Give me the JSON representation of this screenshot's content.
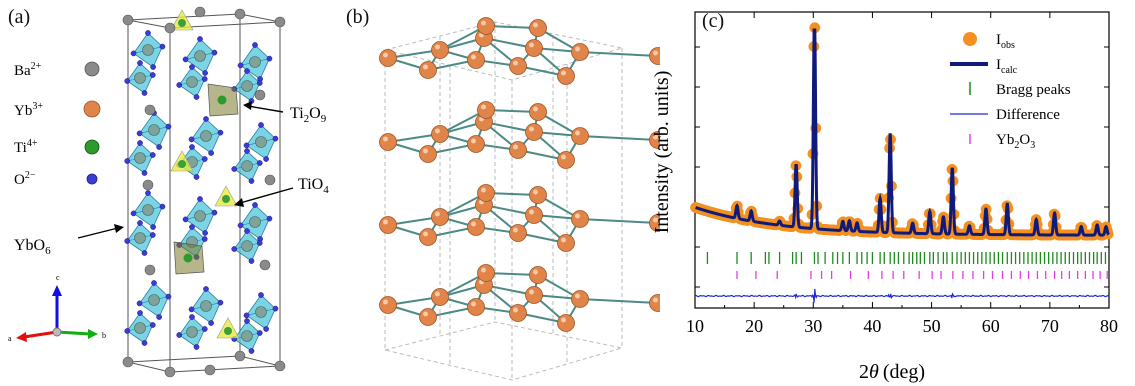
{
  "panels": {
    "a": {
      "label": "(a)"
    },
    "b": {
      "label": "(b)"
    },
    "c": {
      "label": "(c)"
    }
  },
  "panel_a": {
    "species": [
      {
        "ion": "Ba",
        "charge": "2+",
        "color": "#808080"
      },
      {
        "ion": "Yb",
        "charge": "3+",
        "color": "#e0844a"
      },
      {
        "ion": "Ti",
        "charge": "4+",
        "color": "#2e9a2e"
      },
      {
        "ion": "O",
        "charge": "2−",
        "color": "#3b3bd6"
      }
    ],
    "annotations": [
      {
        "base": "Ti",
        "sub1": "2",
        "mid": "O",
        "sub2": "9"
      },
      {
        "base": "TiO",
        "sub1": "4",
        "mid": "",
        "sub2": ""
      },
      {
        "base": "YbO",
        "sub1": "6",
        "mid": "",
        "sub2": ""
      }
    ],
    "axes": {
      "a": "a",
      "b": "b",
      "c": "c"
    }
  },
  "chart_data": {
    "type": "line",
    "xlabel": "2θ (deg)",
    "xlabel_parts": {
      "theta": "θ",
      "unit": "(deg)",
      "prefix": "2"
    },
    "ylabel": "Intensity (arb. units)",
    "xlim": [
      10,
      80
    ],
    "xticks": [
      10,
      20,
      30,
      40,
      50,
      60,
      70,
      80
    ],
    "legend_placement": "top-right",
    "legend": [
      {
        "name": "I",
        "sub": "obs",
        "color": "#f39020"
      },
      {
        "name": "I",
        "sub": "calc",
        "color": "#0f1a7a"
      },
      {
        "name": "Bragg peaks",
        "sub": "",
        "color": "#1e8a1e"
      },
      {
        "name": "Difference",
        "sub": "",
        "color": "#1a2ad0"
      },
      {
        "name": "Yb",
        "sub": "2",
        "suffix": "O",
        "sub2": "3",
        "color": "#e040e0"
      }
    ],
    "background": {
      "start": 2.1,
      "end": 0.45
    },
    "peaks": [
      {
        "x": 17.1,
        "h": 0.75
      },
      {
        "x": 19.5,
        "h": 0.6
      },
      {
        "x": 24.3,
        "h": 0.25
      },
      {
        "x": 27.1,
        "h": 3.7
      },
      {
        "x": 30.2,
        "h": 12.5
      },
      {
        "x": 35.0,
        "h": 0.55
      },
      {
        "x": 36.1,
        "h": 0.6
      },
      {
        "x": 37.4,
        "h": 0.5
      },
      {
        "x": 41.3,
        "h": 2.0
      },
      {
        "x": 43.0,
        "h": 5.8
      },
      {
        "x": 46.8,
        "h": 0.6
      },
      {
        "x": 49.7,
        "h": 1.3
      },
      {
        "x": 52.0,
        "h": 1.0
      },
      {
        "x": 53.5,
        "h": 3.9
      },
      {
        "x": 56.4,
        "h": 0.5
      },
      {
        "x": 59.2,
        "h": 1.5
      },
      {
        "x": 62.8,
        "h": 1.8
      },
      {
        "x": 67.7,
        "h": 0.9
      },
      {
        "x": 70.8,
        "h": 1.3
      },
      {
        "x": 75.3,
        "h": 0.5
      },
      {
        "x": 78.0,
        "h": 0.6
      },
      {
        "x": 79.5,
        "h": 0.5
      }
    ],
    "bragg_peaks": [
      12.1,
      17.1,
      19.5,
      21.9,
      22.5,
      24.3,
      26.5,
      27.1,
      28.0,
      30.2,
      30.8,
      32.0,
      33.3,
      34.1,
      35.0,
      36.1,
      37.4,
      38.2,
      39.1,
      40.0,
      41.3,
      42.0,
      43.0,
      43.7,
      44.4,
      45.3,
      46.2,
      46.8,
      47.5,
      48.1,
      48.8,
      49.7,
      50.3,
      51.1,
      52.0,
      52.6,
      53.5,
      54.3,
      55.0,
      55.7,
      56.4,
      57.1,
      57.8,
      58.5,
      59.2,
      59.9,
      60.6,
      61.3,
      62.0,
      62.8,
      63.5,
      64.2,
      64.9,
      65.6,
      66.3,
      67.0,
      67.7,
      68.4,
      69.1,
      69.8,
      70.5,
      71.2,
      71.9,
      72.6,
      73.3,
      74.0,
      74.7,
      75.3,
      76.0,
      76.7,
      77.4,
      78.0,
      78.7,
      79.4
    ],
    "yb2o3_peaks": [
      17.1,
      20.3,
      23.9,
      29.6,
      31.4,
      33.1,
      36.3,
      39.3,
      41.6,
      43.5,
      45.3,
      47.9,
      50.1,
      51.6,
      53.6,
      55.3,
      57.0,
      58.8,
      60.3,
      62.0,
      63.5,
      65.0,
      66.4,
      67.9,
      69.3,
      70.8,
      72.0,
      73.3,
      74.7,
      76.0,
      77.3,
      78.5,
      79.7
    ],
    "difference_spikes": [
      {
        "x": 30.2,
        "h": 1.0
      },
      {
        "x": 43.0,
        "h": 0.35
      },
      {
        "x": 53.5,
        "h": 0.3
      },
      {
        "x": 27.1,
        "h": 0.25
      }
    ]
  }
}
